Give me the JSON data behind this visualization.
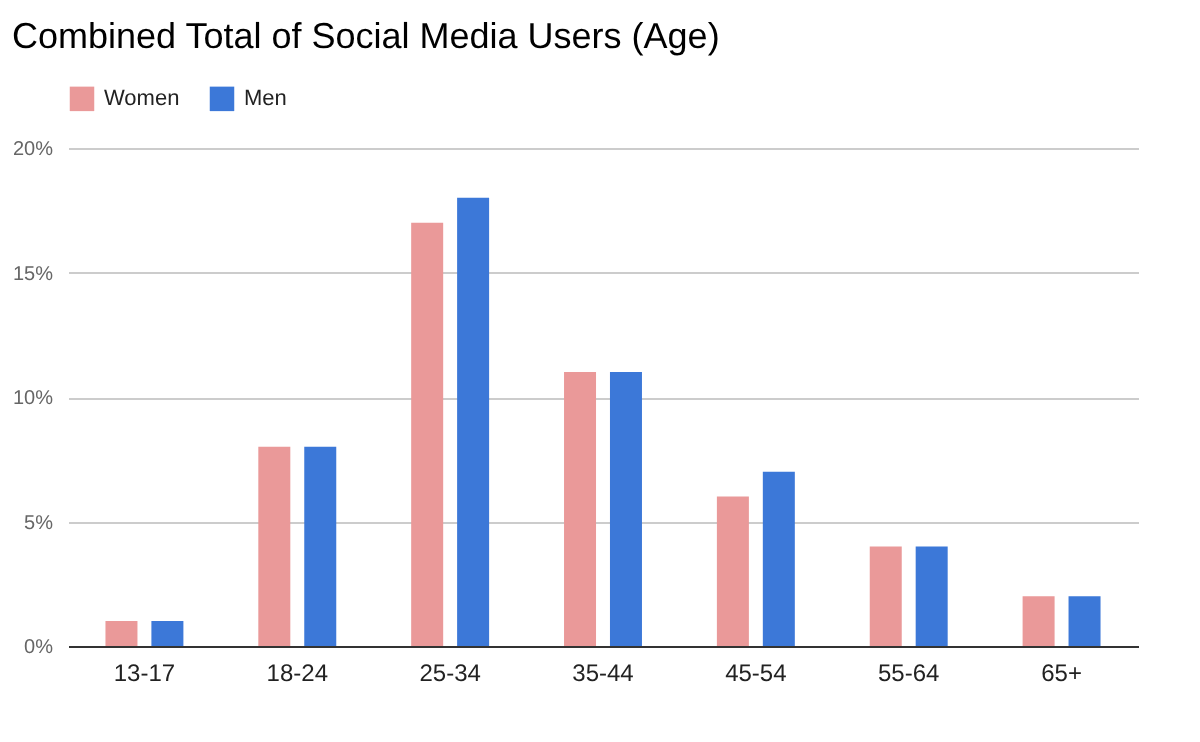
{
  "chart_data": {
    "type": "bar",
    "title": "Combined Total of Social Media Users (Age)",
    "categories": [
      "13-17",
      "18-24",
      "25-34",
      "35-44",
      "45-54",
      "55-64",
      "65+"
    ],
    "series": [
      {
        "name": "Women",
        "color": "#ea9999",
        "values": [
          1,
          8,
          17,
          11,
          6,
          4,
          2
        ]
      },
      {
        "name": "Men",
        "color": "#3c78d8",
        "values": [
          1,
          8,
          18,
          11,
          7,
          4,
          2
        ]
      }
    ],
    "ylim": [
      0,
      20
    ],
    "yticks": [
      {
        "value": 0,
        "label": "0%"
      },
      {
        "value": 5,
        "label": "5%"
      },
      {
        "value": 10,
        "label": "10%"
      },
      {
        "value": 15,
        "label": "15%"
      },
      {
        "value": 20,
        "label": "20%"
      }
    ],
    "grid": "y",
    "legend": "top"
  }
}
